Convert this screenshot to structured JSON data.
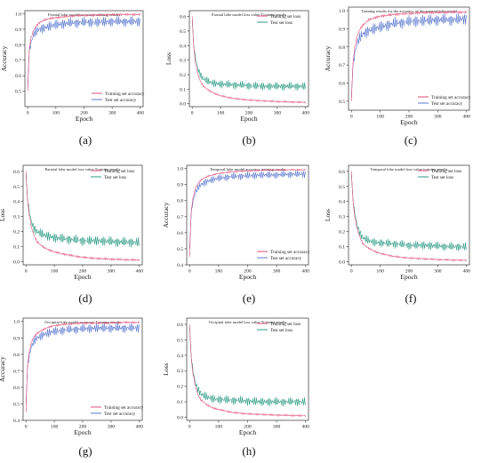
{
  "colors": {
    "train": "#e0507a",
    "test_acc": "#5b78cf",
    "test_loss": "#2e9b85",
    "axis": "#333333"
  },
  "chart_data": [
    {
      "id": "a",
      "caption": "(a)",
      "type": "line",
      "title": "Frontal lobe model accuracy training results",
      "xlabel": "Epoch",
      "ylabel": "Accuracy",
      "xlim": [
        -10,
        410
      ],
      "ylim": [
        0.4,
        1.02
      ],
      "xticks": [
        0,
        100,
        200,
        300,
        400
      ],
      "yticks": [
        0.5,
        0.6,
        0.7,
        0.8,
        0.9,
        1.0
      ],
      "legend": "bottom-right",
      "series": [
        {
          "name": "Training set accuracy",
          "color": "#e0507a",
          "x": [
            0,
            5,
            10,
            20,
            30,
            40,
            60,
            80,
            100,
            150,
            200,
            250,
            300,
            350,
            400
          ],
          "y": [
            0.5,
            0.76,
            0.83,
            0.89,
            0.92,
            0.94,
            0.96,
            0.97,
            0.975,
            0.985,
            0.99,
            0.992,
            0.994,
            0.995,
            0.995
          ]
        },
        {
          "name": "Test set accuracy",
          "color": "#5b78cf",
          "x": [
            0,
            5,
            10,
            20,
            30,
            40,
            60,
            80,
            100,
            150,
            200,
            250,
            300,
            350,
            400
          ],
          "y": [
            0.52,
            0.74,
            0.8,
            0.86,
            0.88,
            0.9,
            0.91,
            0.92,
            0.93,
            0.94,
            0.945,
            0.945,
            0.95,
            0.95,
            0.95
          ]
        }
      ]
    },
    {
      "id": "b",
      "caption": "(b)",
      "type": "line",
      "title": "Frontal lobe model loss value Training results",
      "xlabel": "Epoch",
      "ylabel": "Loss",
      "xlim": [
        -10,
        410
      ],
      "ylim": [
        -0.02,
        0.64
      ],
      "xticks": [
        0,
        100,
        200,
        300,
        400
      ],
      "yticks": [
        0.0,
        0.1,
        0.2,
        0.3,
        0.4,
        0.5,
        0.6
      ],
      "legend": "top-right",
      "series": [
        {
          "name": "Training set loss",
          "color": "#e0507a",
          "x": [
            0,
            5,
            10,
            20,
            30,
            40,
            60,
            80,
            100,
            150,
            200,
            250,
            300,
            350,
            400
          ],
          "y": [
            0.6,
            0.4,
            0.3,
            0.2,
            0.15,
            0.12,
            0.09,
            0.07,
            0.055,
            0.035,
            0.025,
            0.02,
            0.015,
            0.012,
            0.01
          ]
        },
        {
          "name": "Test set loss",
          "color": "#2e9b85",
          "x": [
            0,
            5,
            10,
            20,
            30,
            40,
            60,
            80,
            100,
            150,
            200,
            250,
            300,
            350,
            400
          ],
          "y": [
            0.58,
            0.42,
            0.33,
            0.24,
            0.2,
            0.17,
            0.15,
            0.14,
            0.135,
            0.13,
            0.125,
            0.12,
            0.12,
            0.12,
            0.12
          ]
        }
      ]
    },
    {
      "id": "c",
      "caption": "(c)",
      "type": "line",
      "title": "Training results for the accuracy of the parietal lobe model",
      "xlabel": "Epoch",
      "ylabel": "Accuracy",
      "xlim": [
        -10,
        410
      ],
      "ylim": [
        0.45,
        1.02
      ],
      "xticks": [
        0,
        100,
        200,
        300,
        400
      ],
      "yticks": [
        0.5,
        0.6,
        0.7,
        0.8,
        0.9,
        1.0
      ],
      "legend": "bottom-right",
      "series": [
        {
          "name": "Training set accuracy",
          "color": "#e0507a",
          "x": [
            0,
            5,
            10,
            20,
            30,
            40,
            60,
            80,
            100,
            150,
            200,
            250,
            300,
            350,
            400
          ],
          "y": [
            0.5,
            0.7,
            0.78,
            0.86,
            0.9,
            0.92,
            0.95,
            0.96,
            0.97,
            0.98,
            0.985,
            0.99,
            0.99,
            0.992,
            0.992
          ]
        },
        {
          "name": "Test set accuracy",
          "color": "#5b78cf",
          "x": [
            0,
            5,
            10,
            20,
            30,
            40,
            60,
            80,
            100,
            150,
            200,
            250,
            300,
            350,
            400
          ],
          "y": [
            0.52,
            0.68,
            0.75,
            0.82,
            0.85,
            0.87,
            0.89,
            0.9,
            0.91,
            0.93,
            0.94,
            0.945,
            0.95,
            0.95,
            0.955
          ]
        }
      ]
    },
    {
      "id": "d",
      "caption": "(d)",
      "type": "line",
      "title": "Parietal lobe model loss value Training results",
      "xlabel": "Epoch",
      "ylabel": "Loss",
      "xlim": [
        -10,
        410
      ],
      "ylim": [
        -0.02,
        0.64
      ],
      "xticks": [
        0,
        100,
        200,
        300,
        400
      ],
      "yticks": [
        0.0,
        0.1,
        0.2,
        0.3,
        0.4,
        0.5,
        0.6
      ],
      "legend": "top-right",
      "series": [
        {
          "name": "Training set loss",
          "color": "#e0507a",
          "x": [
            0,
            5,
            10,
            20,
            30,
            40,
            60,
            80,
            100,
            150,
            200,
            250,
            300,
            350,
            400
          ],
          "y": [
            0.6,
            0.42,
            0.33,
            0.22,
            0.17,
            0.13,
            0.1,
            0.08,
            0.065,
            0.045,
            0.03,
            0.022,
            0.018,
            0.014,
            0.012
          ]
        },
        {
          "name": "Test set loss",
          "color": "#2e9b85",
          "x": [
            0,
            5,
            10,
            20,
            30,
            40,
            60,
            80,
            100,
            150,
            200,
            250,
            300,
            350,
            400
          ],
          "y": [
            0.58,
            0.44,
            0.35,
            0.26,
            0.22,
            0.2,
            0.18,
            0.17,
            0.16,
            0.15,
            0.14,
            0.14,
            0.135,
            0.13,
            0.13
          ]
        }
      ]
    },
    {
      "id": "e",
      "caption": "(e)",
      "type": "line",
      "title": "Temporal lobe model accuracy training results",
      "xlabel": "Epoch",
      "ylabel": "Accuracy",
      "xlim": [
        -10,
        410
      ],
      "ylim": [
        0.4,
        1.02
      ],
      "xticks": [
        0,
        100,
        200,
        300,
        400
      ],
      "yticks": [
        0.4,
        0.5,
        0.6,
        0.7,
        0.8,
        0.9,
        1.0
      ],
      "legend": "bottom-right",
      "series": [
        {
          "name": "Training set accuracy",
          "color": "#e0507a",
          "x": [
            0,
            5,
            10,
            20,
            30,
            40,
            60,
            80,
            100,
            150,
            200,
            250,
            300,
            350,
            400
          ],
          "y": [
            0.45,
            0.72,
            0.8,
            0.88,
            0.91,
            0.93,
            0.95,
            0.96,
            0.97,
            0.98,
            0.985,
            0.99,
            0.99,
            0.992,
            0.992
          ]
        },
        {
          "name": "Test set accuracy",
          "color": "#5b78cf",
          "x": [
            0,
            5,
            10,
            20,
            30,
            40,
            60,
            80,
            100,
            150,
            200,
            250,
            300,
            350,
            400
          ],
          "y": [
            0.5,
            0.7,
            0.78,
            0.85,
            0.88,
            0.9,
            0.92,
            0.93,
            0.94,
            0.95,
            0.955,
            0.96,
            0.96,
            0.965,
            0.965
          ]
        }
      ]
    },
    {
      "id": "f",
      "caption": "(f)",
      "type": "line",
      "title": "Temporal lobe model loss value training results",
      "xlabel": "Epoch",
      "ylabel": "Loss",
      "xlim": [
        -10,
        410
      ],
      "ylim": [
        -0.02,
        0.64
      ],
      "xticks": [
        0,
        100,
        200,
        300,
        400
      ],
      "yticks": [
        0.0,
        0.1,
        0.2,
        0.3,
        0.4,
        0.5,
        0.6
      ],
      "legend": "top-right",
      "series": [
        {
          "name": "Training set loss",
          "color": "#e0507a",
          "x": [
            0,
            5,
            10,
            20,
            30,
            40,
            60,
            80,
            100,
            150,
            200,
            250,
            300,
            350,
            400
          ],
          "y": [
            0.6,
            0.42,
            0.32,
            0.22,
            0.16,
            0.12,
            0.09,
            0.07,
            0.055,
            0.035,
            0.025,
            0.02,
            0.015,
            0.012,
            0.01
          ]
        },
        {
          "name": "Test set loss",
          "color": "#2e9b85",
          "x": [
            0,
            5,
            10,
            20,
            30,
            40,
            60,
            80,
            100,
            150,
            200,
            250,
            300,
            350,
            400
          ],
          "y": [
            0.58,
            0.43,
            0.34,
            0.24,
            0.19,
            0.16,
            0.14,
            0.13,
            0.125,
            0.12,
            0.11,
            0.11,
            0.105,
            0.1,
            0.1
          ]
        }
      ]
    },
    {
      "id": "g",
      "caption": "(g)",
      "type": "line",
      "title": "Occipital lobe model accuracy Training results",
      "xlabel": "Epoch",
      "ylabel": "Accuracy",
      "xlim": [
        -10,
        410
      ],
      "ylim": [
        0.4,
        1.02
      ],
      "xticks": [
        0,
        100,
        200,
        300,
        400
      ],
      "yticks": [
        0.4,
        0.5,
        0.6,
        0.7,
        0.8,
        0.9,
        1.0
      ],
      "legend": "bottom-right",
      "series": [
        {
          "name": "Training set accuracy",
          "color": "#e0507a",
          "x": [
            0,
            5,
            10,
            20,
            30,
            40,
            60,
            80,
            100,
            150,
            200,
            250,
            300,
            350,
            400
          ],
          "y": [
            0.45,
            0.72,
            0.8,
            0.88,
            0.91,
            0.93,
            0.95,
            0.965,
            0.975,
            0.985,
            0.99,
            0.99,
            0.992,
            0.994,
            0.994
          ]
        },
        {
          "name": "Test set accuracy",
          "color": "#5b78cf",
          "x": [
            0,
            5,
            10,
            20,
            30,
            40,
            60,
            80,
            100,
            150,
            200,
            250,
            300,
            350,
            400
          ],
          "y": [
            0.5,
            0.7,
            0.78,
            0.85,
            0.88,
            0.9,
            0.92,
            0.93,
            0.94,
            0.95,
            0.955,
            0.96,
            0.96,
            0.96,
            0.96
          ]
        }
      ]
    },
    {
      "id": "h",
      "caption": "(h)",
      "type": "line",
      "title": "Occipital lobe model loss value Training results",
      "xlabel": "Epoch",
      "ylabel": "Loss",
      "xlim": [
        -10,
        410
      ],
      "ylim": [
        -0.02,
        0.64
      ],
      "xticks": [
        0,
        100,
        200,
        300,
        400
      ],
      "yticks": [
        0.0,
        0.1,
        0.2,
        0.3,
        0.4,
        0.5,
        0.6
      ],
      "legend": "top-right",
      "series": [
        {
          "name": "Training set loss",
          "color": "#e0507a",
          "x": [
            0,
            5,
            10,
            20,
            30,
            40,
            60,
            80,
            100,
            150,
            200,
            250,
            300,
            350,
            400
          ],
          "y": [
            0.6,
            0.4,
            0.3,
            0.2,
            0.14,
            0.11,
            0.08,
            0.06,
            0.05,
            0.03,
            0.022,
            0.018,
            0.014,
            0.012,
            0.01
          ]
        },
        {
          "name": "Test set loss",
          "color": "#2e9b85",
          "x": [
            0,
            5,
            10,
            20,
            30,
            40,
            60,
            80,
            100,
            150,
            200,
            250,
            300,
            350,
            400
          ],
          "y": [
            0.58,
            0.42,
            0.32,
            0.22,
            0.18,
            0.15,
            0.13,
            0.12,
            0.115,
            0.11,
            0.105,
            0.1,
            0.1,
            0.1,
            0.1
          ]
        }
      ]
    }
  ]
}
